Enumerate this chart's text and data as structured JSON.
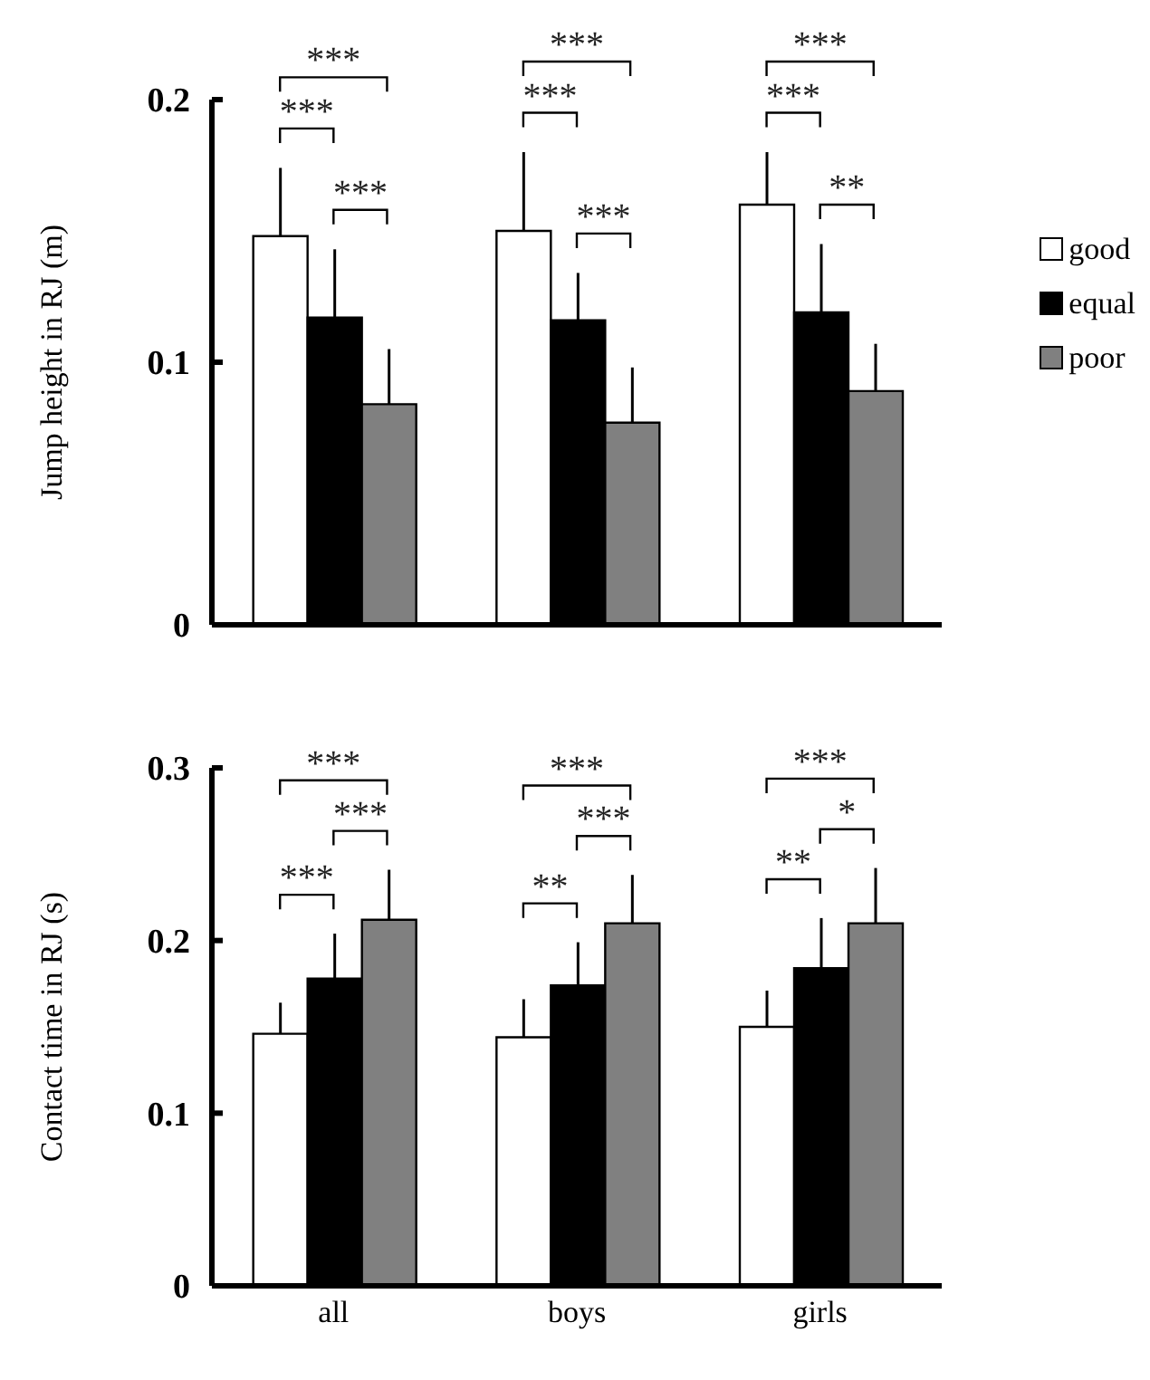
{
  "chart_data": [
    {
      "type": "bar",
      "categories": [
        null,
        null,
        null
      ],
      "ylabel": "Jump height in RJ (m)",
      "ylim": [
        0,
        0.2
      ],
      "yticks": [
        0,
        0.1,
        0.2
      ],
      "tick_labels": "y",
      "legend": "right",
      "series": [
        {
          "name": "good",
          "color": "#ffffff",
          "values": [
            0.148,
            0.15,
            0.16
          ],
          "errors": [
            0.026,
            0.03,
            0.02
          ]
        },
        {
          "name": "equal",
          "color": "#000000",
          "values": [
            0.117,
            0.116,
            0.119
          ],
          "errors": [
            0.026,
            0.018,
            0.026
          ]
        },
        {
          "name": "poor",
          "color": "#808080",
          "values": [
            0.084,
            0.077,
            0.089
          ],
          "errors": [
            0.021,
            0.021,
            0.018
          ]
        }
      ],
      "annotations": [
        "***",
        "***",
        "***",
        "***",
        "***",
        "***",
        "***",
        "**",
        "***"
      ]
    },
    {
      "type": "bar",
      "categories": [
        "all",
        "boys",
        "girls"
      ],
      "ylabel": "Contact time in RJ (s)",
      "ylim": [
        0,
        0.3
      ],
      "yticks": [
        0,
        0.1,
        0.2,
        0.3
      ],
      "series": [
        {
          "color": "#ffffff",
          "values": [
            0.146,
            0.144,
            0.15
          ],
          "errors": [
            0.018,
            0.022,
            0.021
          ]
        },
        {
          "color": "#000000",
          "values": [
            0.178,
            0.174,
            0.184
          ],
          "errors": [
            0.026,
            0.025,
            0.029
          ]
        },
        {
          "color": "#808080",
          "values": [
            0.212,
            0.21,
            0.21
          ],
          "errors": [
            0.029,
            0.028,
            0.032
          ]
        }
      ],
      "annotations": [
        "***",
        "***",
        "***",
        "**",
        "***",
        "***",
        "**",
        "*",
        "***"
      ]
    }
  ]
}
